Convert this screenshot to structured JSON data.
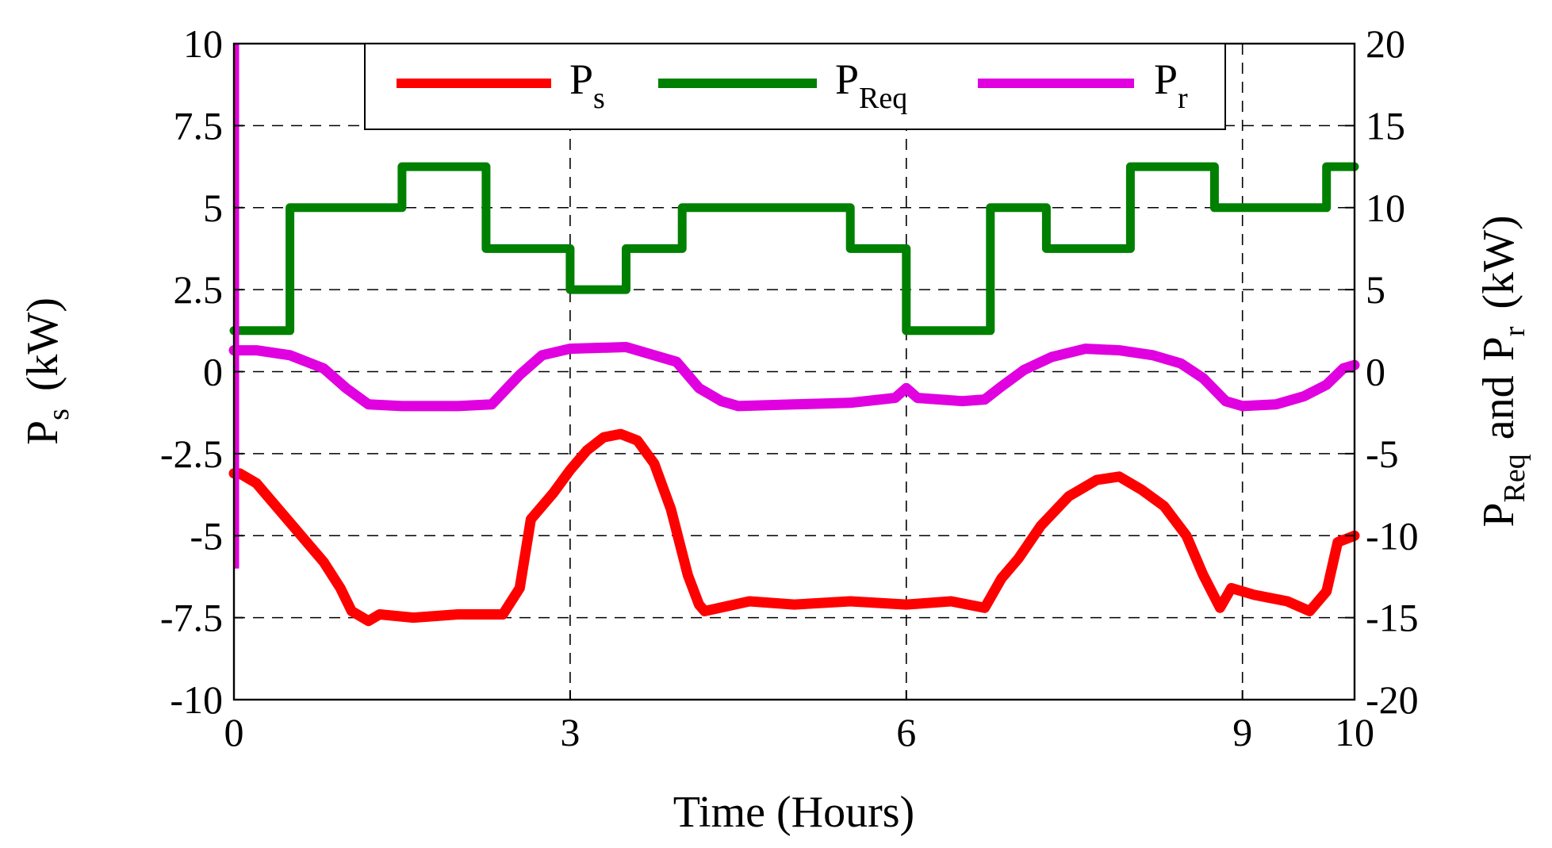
{
  "chart_data": {
    "type": "line",
    "xlabel": "Time (Hours)",
    "xlim": [
      0,
      10
    ],
    "x_ticks": [
      0,
      3,
      6,
      9,
      10
    ],
    "x_tick_labels": [
      "0",
      "3",
      "6",
      "9",
      "10"
    ],
    "y_left": {
      "label_main": "P",
      "label_sub": "s",
      "label_unit": "(kW)",
      "ylim": [
        -10,
        10
      ],
      "ticks": [
        10,
        7.5,
        5,
        2.5,
        0,
        -2.5,
        -5,
        -7.5,
        -10
      ],
      "tick_labels": [
        "10",
        "7.5",
        "5",
        "2.5",
        "0",
        "-2.5",
        "-5",
        "-7.5",
        "-10"
      ]
    },
    "y_right": {
      "label_main_1": "P",
      "label_sub_1": "Req",
      "label_and": "and",
      "label_main_2": "P",
      "label_sub_2": "r",
      "label_unit": "(kW)",
      "ylim": [
        -20,
        20
      ],
      "ticks": [
        20,
        15,
        10,
        5,
        0,
        -5,
        -10,
        -15,
        -20
      ],
      "tick_labels": [
        "20",
        "15",
        "10",
        "5",
        "0",
        "-5",
        "-10",
        "-15",
        "-20"
      ]
    },
    "legend": [
      {
        "main": "P",
        "sub": "s",
        "color": "#ff0000"
      },
      {
        "main": "P",
        "sub": "Req",
        "color": "#008000"
      },
      {
        "main": "P",
        "sub": "r",
        "color": "#e000e0"
      }
    ],
    "grid": true,
    "series": [
      {
        "name": "Ps",
        "axis": "left",
        "color": "#ff0000",
        "x": [
          0,
          0.05,
          0.2,
          0.4,
          0.6,
          0.8,
          0.95,
          1.05,
          1.15,
          1.2,
          1.3,
          1.6,
          2.0,
          2.4,
          2.55,
          2.65,
          2.85,
          3.0,
          3.15,
          3.3,
          3.45,
          3.6,
          3.75,
          3.9,
          4.05,
          4.15,
          4.2,
          4.6,
          5.0,
          5.5,
          6.0,
          6.4,
          6.7,
          6.85,
          7.0,
          7.2,
          7.45,
          7.7,
          7.9,
          8.1,
          8.3,
          8.5,
          8.65,
          8.8,
          8.9,
          9.1,
          9.4,
          9.6,
          9.75,
          9.85,
          10
        ],
        "y": [
          -3.1,
          -3.1,
          -3.4,
          -4.2,
          -5.0,
          -5.8,
          -6.6,
          -7.3,
          -7.5,
          -7.6,
          -7.4,
          -7.5,
          -7.4,
          -7.4,
          -6.6,
          -4.5,
          -3.7,
          -3.0,
          -2.4,
          -2.0,
          -1.9,
          -2.1,
          -2.8,
          -4.2,
          -6.2,
          -7.1,
          -7.3,
          -7.0,
          -7.1,
          -7.0,
          -7.1,
          -7.0,
          -7.2,
          -6.3,
          -5.7,
          -4.7,
          -3.8,
          -3.3,
          -3.2,
          -3.6,
          -4.1,
          -5.0,
          -6.2,
          -7.2,
          -6.6,
          -6.8,
          -7.0,
          -7.3,
          -6.7,
          -5.2,
          -5.0
        ]
      },
      {
        "name": "PReq",
        "axis": "right",
        "color": "#008000",
        "x": [
          0,
          0.5,
          0.5,
          1.5,
          1.5,
          2.25,
          2.25,
          3.0,
          3.0,
          3.5,
          3.5,
          4.0,
          4.0,
          5.5,
          5.5,
          6.0,
          6.0,
          6.75,
          6.75,
          7.25,
          7.25,
          8.0,
          8.0,
          8.75,
          8.75,
          9.75,
          9.75,
          10
        ],
        "y": [
          2.5,
          2.5,
          10,
          10,
          12.5,
          12.5,
          7.5,
          7.5,
          5,
          5,
          7.5,
          7.5,
          10,
          10,
          7.5,
          7.5,
          2.5,
          2.5,
          10,
          10,
          7.5,
          7.5,
          12.5,
          12.5,
          10,
          10,
          12.5,
          12.5
        ]
      },
      {
        "name": "Pr",
        "axis": "right",
        "color": "#e000e0",
        "x": [
          0,
          0.2,
          0.5,
          0.8,
          1.0,
          1.2,
          1.5,
          2.0,
          2.3,
          2.55,
          2.75,
          3.0,
          3.5,
          3.95,
          4.15,
          4.35,
          4.5,
          5.0,
          5.5,
          5.9,
          6.0,
          6.1,
          6.5,
          6.7,
          6.85,
          7.05,
          7.3,
          7.6,
          7.9,
          8.2,
          8.45,
          8.65,
          8.85,
          9.0,
          9.3,
          9.55,
          9.75,
          9.9,
          10
        ],
        "y": [
          1.3,
          1.3,
          1.0,
          0.2,
          -1.0,
          -2.0,
          -2.1,
          -2.1,
          -2.0,
          -0.2,
          1.0,
          1.4,
          1.5,
          0.6,
          -1.0,
          -1.8,
          -2.1,
          -2.0,
          -1.9,
          -1.6,
          -1.0,
          -1.6,
          -1.8,
          -1.7,
          -0.9,
          0.1,
          0.9,
          1.4,
          1.3,
          1.0,
          0.5,
          -0.4,
          -1.8,
          -2.1,
          -2.0,
          -1.5,
          -0.8,
          0.2,
          0.4
        ]
      }
    ]
  }
}
